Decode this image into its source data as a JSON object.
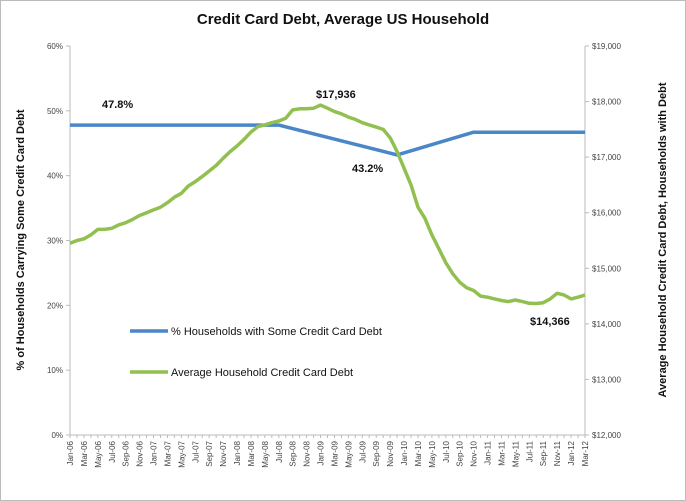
{
  "chart_data": {
    "type": "line",
    "title": "Credit Card Debt, Average US Household",
    "ylabel_left": "% of Households Carrying Some Credit Card Debt",
    "ylabel_right": "Average Household Credit Card Debt, Households with Debt",
    "ylim_left": [
      0,
      60
    ],
    "ylim_right": [
      12000,
      19000
    ],
    "yticks_left": [
      "0%",
      "10%",
      "20%",
      "30%",
      "40%",
      "50%",
      "60%"
    ],
    "yticks_right": [
      "$12,000",
      "$13,000",
      "$14,000",
      "$15,000",
      "$16,000",
      "$17,000",
      "$18,000",
      "$19,000"
    ],
    "start_month": "Jan-06",
    "xtick_labels": [
      "Jan-06",
      "Mar-06",
      "May-06",
      "Jul-06",
      "Sep-06",
      "Nov-06",
      "Jan-07",
      "Mar-07",
      "May-07",
      "Jul-07",
      "Sep-07",
      "Nov-07",
      "Jan-08",
      "Mar-08",
      "May-08",
      "Jul-08",
      "Sep-08",
      "Nov-08",
      "Jan-09",
      "Mar-09",
      "May-09",
      "Jul-09",
      "Sep-09",
      "Nov-09",
      "Jan-10",
      "Mar-10",
      "May-10",
      "Jul-10",
      "Sep-10",
      "Nov-10",
      "Jan-11",
      "Mar-11",
      "May-11",
      "Jul-11",
      "Sep-11",
      "Nov-11",
      "Jan-12",
      "Mar-12"
    ],
    "series": [
      {
        "name": "% Households with Some Credit Card Debt",
        "axis": "left",
        "color": "#4a86c8",
        "keypoints": [
          {
            "x": "Jan-06",
            "y": 47.8
          },
          {
            "x": "Jul-08",
            "y": 47.8
          },
          {
            "x": "Dec-09",
            "y": 43.2
          },
          {
            "x": "Nov-10",
            "y": 46.7
          },
          {
            "x": "Mar-12",
            "y": 46.7
          }
        ]
      },
      {
        "name": "Average Household Credit Card Debt",
        "axis": "right",
        "color": "#92c050",
        "values": [
          15450,
          15500,
          15530,
          15600,
          15700,
          15700,
          15720,
          15780,
          15820,
          15880,
          15950,
          16000,
          16050,
          16100,
          16180,
          16280,
          16350,
          16480,
          16560,
          16650,
          16750,
          16850,
          16980,
          17100,
          17200,
          17320,
          17450,
          17550,
          17580,
          17620,
          17650,
          17700,
          17850,
          17870,
          17870,
          17880,
          17936,
          17880,
          17820,
          17780,
          17720,
          17680,
          17620,
          17580,
          17540,
          17500,
          17350,
          17100,
          16800,
          16500,
          16100,
          15900,
          15600,
          15350,
          15100,
          14900,
          14750,
          14650,
          14600,
          14500,
          14480,
          14450,
          14420,
          14400,
          14430,
          14400,
          14370,
          14366,
          14380,
          14450,
          14550,
          14520,
          14450,
          14480,
          14520
        ]
      }
    ],
    "annotations": [
      "47.8%",
      "$17,936",
      "43.2%",
      "$14,366"
    ],
    "legend": "center-left"
  }
}
